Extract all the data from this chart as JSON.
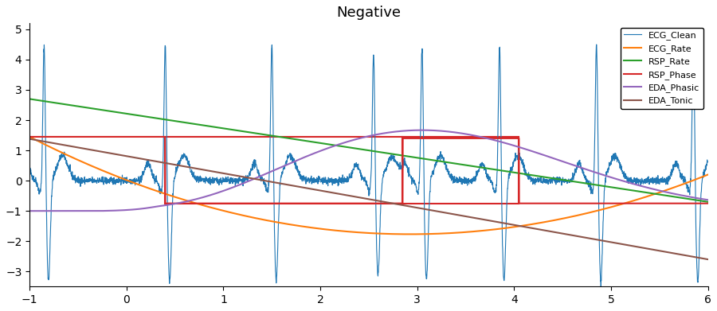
{
  "title": "Negative",
  "xlim": [
    -1,
    6
  ],
  "ylim": [
    -3.5,
    5.2
  ],
  "yticks": [
    -3,
    -2,
    -1,
    0,
    1,
    2,
    3,
    4,
    5
  ],
  "xticks": [
    -1,
    0,
    1,
    2,
    3,
    4,
    5,
    6
  ],
  "ecg_color": "#1f77b4",
  "ecg_rate_color": "#ff7f0e",
  "rsp_rate_color": "#2ca02c",
  "rsp_phase_color": "#d62728",
  "eda_phasic_color": "#9467bd",
  "eda_tonic_color": "#8c564b",
  "rect1_x": 0.4,
  "rect1_x2": 2.85,
  "rect1_y": -0.75,
  "rect1_y2": 1.45,
  "rect2_x": 2.85,
  "rect2_x2": 4.05,
  "rect2_y": -0.75,
  "rect2_y2": 1.45,
  "ecg_peaks": [
    -0.85,
    0.4,
    1.5,
    2.55,
    3.05,
    3.85,
    4.85,
    5.85
  ],
  "ecg_amplitudes": [
    4.6,
    4.65,
    4.65,
    4.35,
    4.55,
    4.6,
    4.65,
    4.65
  ],
  "legend_labels": [
    "ECG_Clean",
    "ECG_Rate",
    "RSP_Rate",
    "RSP_Phase",
    "EDA_Phasic",
    "EDA_Tonic"
  ]
}
